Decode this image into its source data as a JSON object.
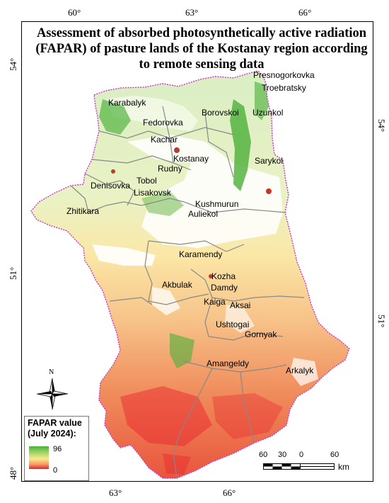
{
  "title": "Assessment of absorbed photosynthetically active radiation (FAPAR) of pasture lands of the Kostanay region according to remote sensing data",
  "graticule": {
    "top": [
      "60°",
      "63°",
      "66°"
    ],
    "bottom": [
      "63°",
      "66°"
    ],
    "left": [
      "54°",
      "51°",
      "48°"
    ],
    "right": [
      "54°",
      "51°"
    ]
  },
  "districts": [
    "Presnogorkovka",
    "Troebratsky",
    "Karabalyk",
    "Borovskoi",
    "Uzunkol",
    "Fedorovka",
    "Kachar",
    "Kostanay",
    "Sarykol",
    "Rudny",
    "Tobol",
    "Denisovka",
    "Lisakovsk",
    "Zhitikara",
    "Kushmurun",
    "Auliekol",
    "Karamendy",
    "Kozha",
    "Akbulak",
    "Damdy",
    "Kaiga",
    "Aksai",
    "Ushtogai",
    "Gornyak",
    "Amangeldy",
    "Arkalyk"
  ],
  "legend": {
    "title_line1": "FAPAR value",
    "title_line2": "(July 2024):",
    "max": "96",
    "min": "0",
    "colors": [
      "#4caf3a",
      "#a8d86a",
      "#fbe98a",
      "#f39a64",
      "#e8202a"
    ]
  },
  "north_arrow": {
    "label": "N",
    "icon": "compass-rose-icon"
  },
  "scale_bar": {
    "ticks": [
      "60",
      "30",
      "0",
      "60"
    ],
    "unit": "km"
  },
  "colors": {
    "boundary": "#cc33cc",
    "district_lines": "#888888",
    "high": "#3fa33a",
    "low": "#e8202a"
  }
}
